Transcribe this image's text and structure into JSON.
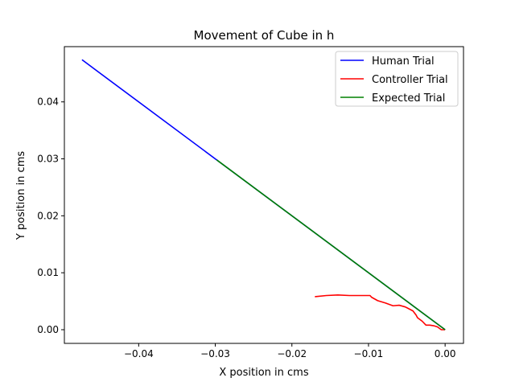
{
  "chart_data": {
    "type": "line",
    "title": "Movement of Cube in h",
    "xlabel": "X position in cms",
    "ylabel": "Y position in cms",
    "xlim": [
      -0.0497,
      0.0024
    ],
    "ylim": [
      -0.0024,
      0.0497
    ],
    "xticks": [
      -0.04,
      -0.03,
      -0.02,
      -0.01,
      0.0
    ],
    "xtick_labels": [
      "−0.04",
      "−0.03",
      "−0.02",
      "−0.01",
      "0.00"
    ],
    "yticks": [
      0.0,
      0.01,
      0.02,
      0.03,
      0.04
    ],
    "ytick_labels": [
      "0.00",
      "0.01",
      "0.02",
      "0.03",
      "0.04"
    ],
    "grid": false,
    "legend_position": "top-right",
    "series": [
      {
        "name": "Human Trial",
        "color": "#0000ff",
        "x": [
          -0.0474,
          0.0
        ],
        "y": [
          0.0474,
          0.0
        ]
      },
      {
        "name": "Controller Trial",
        "color": "#ff0000",
        "x": [
          -0.017,
          -0.0155,
          -0.014,
          -0.0125,
          -0.011,
          -0.0098,
          -0.0096,
          -0.0088,
          -0.0078,
          -0.0068,
          -0.006,
          -0.0052,
          -0.0042,
          -0.0038,
          -0.0036,
          -0.003,
          -0.0025,
          -0.002,
          -0.0015,
          -0.001,
          -0.0005,
          0.0
        ],
        "y": [
          0.0058,
          0.006,
          0.0061,
          0.006,
          0.006,
          0.006,
          0.0057,
          0.0051,
          0.0047,
          0.0042,
          0.0043,
          0.004,
          0.0033,
          0.0026,
          0.0021,
          0.0015,
          0.0008,
          0.0008,
          0.0007,
          0.0005,
          0.0,
          0.0
        ]
      },
      {
        "name": "Expected Trial",
        "color": "#008000",
        "x": [
          -0.0298,
          0.0
        ],
        "y": [
          0.0298,
          0.0
        ]
      }
    ]
  }
}
